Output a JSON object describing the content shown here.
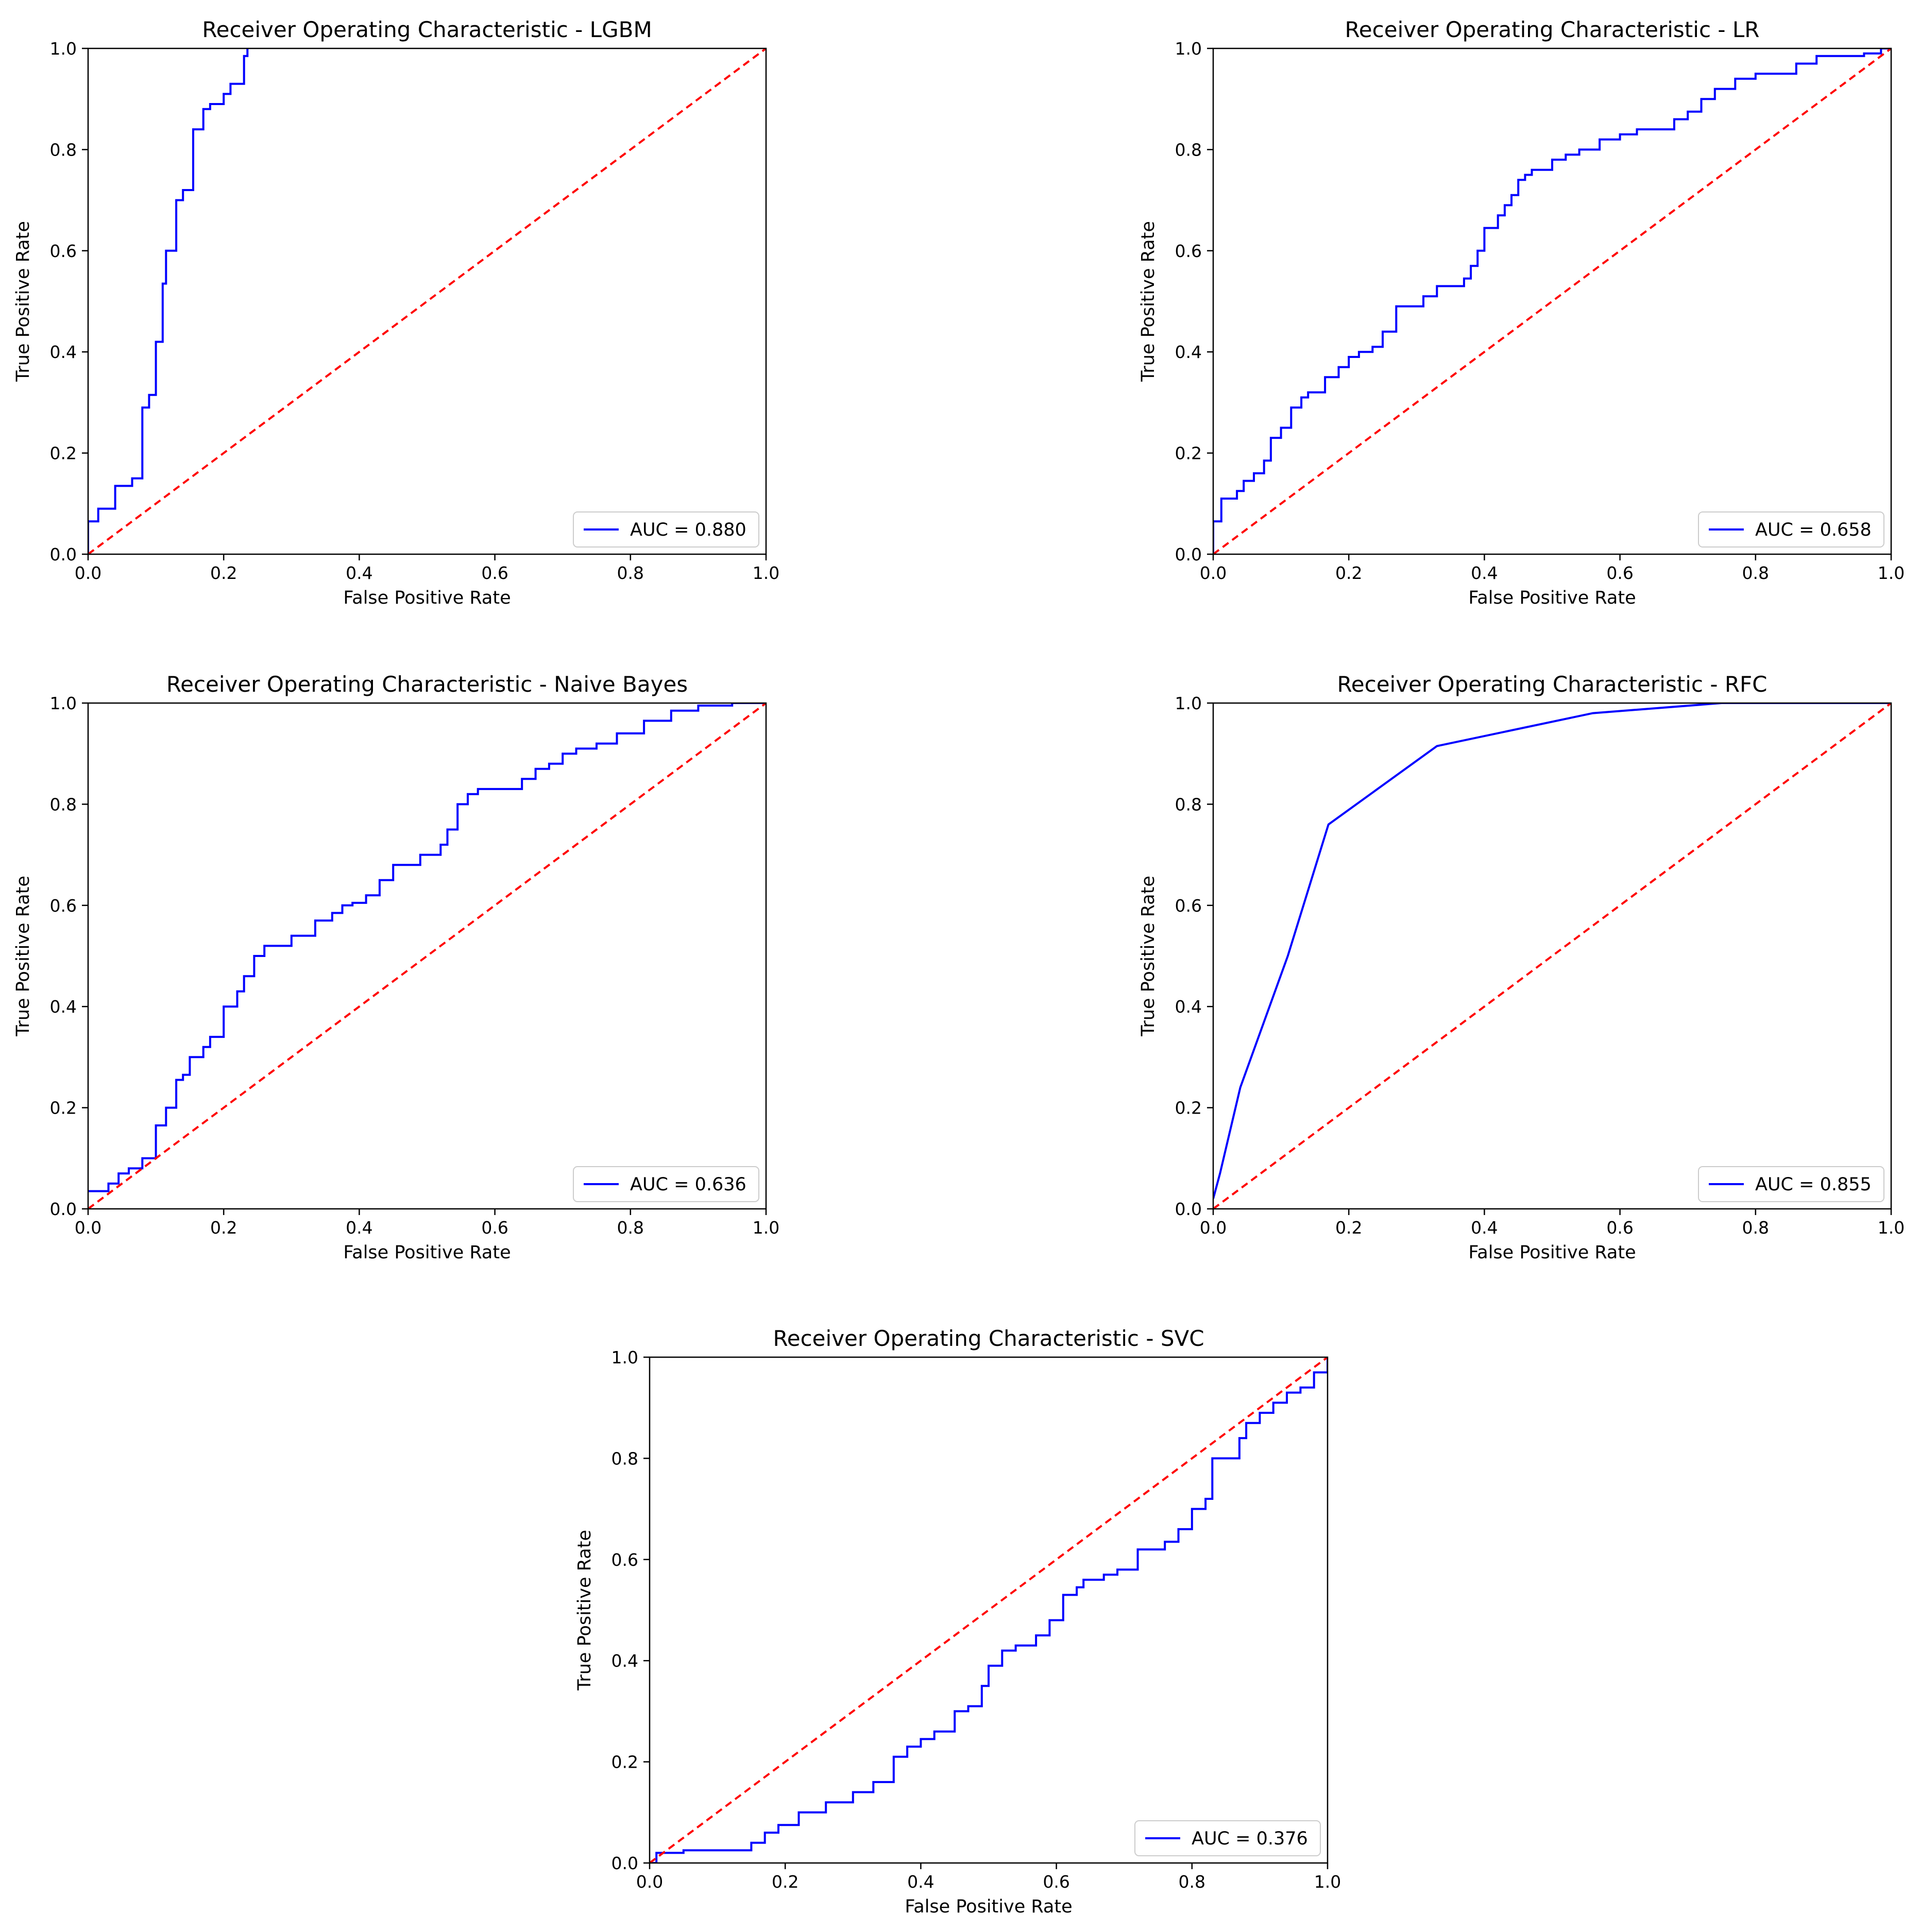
{
  "colors": {
    "roc": "#0000ff",
    "chance": "#ff0000",
    "axes": "#000000"
  },
  "chart_data": [
    {
      "type": "line",
      "title": "Receiver Operating Characteristic - LGBM",
      "xlabel": "False Positive Rate",
      "ylabel": "True Positive Rate",
      "xlim": [
        0,
        1
      ],
      "ylim": [
        0,
        1
      ],
      "xticks": [
        "0.0",
        "0.2",
        "0.4",
        "0.6",
        "0.8",
        "1.0"
      ],
      "yticks": [
        "0.0",
        "0.2",
        "0.4",
        "0.6",
        "0.8",
        "1.0"
      ],
      "legend": "lower-right",
      "series": [
        {
          "name": "AUC = 0.880",
          "style": "solid",
          "color": "#0000ff",
          "x": [
            0,
            0,
            0.015,
            0.015,
            0.04,
            0.04,
            0.065,
            0.065,
            0.08,
            0.08,
            0.09,
            0.09,
            0.1,
            0.1,
            0.11,
            0.11,
            0.115,
            0.115,
            0.13,
            0.13,
            0.14,
            0.14,
            0.155,
            0.155,
            0.17,
            0.17,
            0.18,
            0.18,
            0.2,
            0.2,
            0.21,
            0.21,
            0.23,
            0.23,
            0.235,
            0.235
          ],
          "y": [
            0,
            0.065,
            0.065,
            0.09,
            0.09,
            0.135,
            0.135,
            0.15,
            0.15,
            0.29,
            0.29,
            0.315,
            0.315,
            0.42,
            0.42,
            0.535,
            0.535,
            0.6,
            0.6,
            0.7,
            0.7,
            0.72,
            0.72,
            0.84,
            0.84,
            0.88,
            0.88,
            0.89,
            0.89,
            0.91,
            0.91,
            0.93,
            0.93,
            0.985,
            0.985,
            1.0
          ]
        },
        {
          "name": "chance",
          "style": "dashed",
          "color": "#ff0000",
          "x": [
            0,
            1
          ],
          "y": [
            0,
            1
          ]
        }
      ]
    },
    {
      "type": "line",
      "title": "Receiver Operating Characteristic - LR",
      "xlabel": "False Positive Rate",
      "ylabel": "True Positive Rate",
      "xlim": [
        0,
        1
      ],
      "ylim": [
        0,
        1
      ],
      "xticks": [
        "0.0",
        "0.2",
        "0.4",
        "0.6",
        "0.8",
        "1.0"
      ],
      "yticks": [
        "0.0",
        "0.2",
        "0.4",
        "0.6",
        "0.8",
        "1.0"
      ],
      "legend": "lower-right",
      "series": [
        {
          "name": "AUC = 0.658",
          "style": "solid",
          "color": "#0000ff",
          "x": [
            0,
            0,
            0.012,
            0.012,
            0.035,
            0.035,
            0.045,
            0.045,
            0.06,
            0.06,
            0.075,
            0.075,
            0.085,
            0.085,
            0.1,
            0.1,
            0.115,
            0.115,
            0.13,
            0.13,
            0.14,
            0.14,
            0.165,
            0.165,
            0.185,
            0.185,
            0.2,
            0.2,
            0.215,
            0.215,
            0.235,
            0.235,
            0.25,
            0.25,
            0.27,
            0.27,
            0.31,
            0.31,
            0.33,
            0.33,
            0.37,
            0.37,
            0.38,
            0.38,
            0.39,
            0.39,
            0.4,
            0.4,
            0.42,
            0.42,
            0.43,
            0.43,
            0.44,
            0.44,
            0.45,
            0.45,
            0.46,
            0.46,
            0.47,
            0.47,
            0.5,
            0.5,
            0.52,
            0.52,
            0.54,
            0.54,
            0.57,
            0.57,
            0.6,
            0.6,
            0.625,
            0.625,
            0.68,
            0.68,
            0.7,
            0.7,
            0.72,
            0.72,
            0.74,
            0.74,
            0.77,
            0.77,
            0.8,
            0.8,
            0.86,
            0.86,
            0.89,
            0.89,
            0.96,
            0.96,
            0.985,
            0.985,
            1.0
          ],
          "y": [
            0,
            0.065,
            0.065,
            0.11,
            0.11,
            0.125,
            0.125,
            0.145,
            0.145,
            0.16,
            0.16,
            0.185,
            0.185,
            0.23,
            0.23,
            0.25,
            0.25,
            0.29,
            0.29,
            0.31,
            0.31,
            0.32,
            0.32,
            0.35,
            0.35,
            0.37,
            0.37,
            0.39,
            0.39,
            0.4,
            0.4,
            0.41,
            0.41,
            0.44,
            0.44,
            0.49,
            0.49,
            0.51,
            0.51,
            0.53,
            0.53,
            0.545,
            0.545,
            0.57,
            0.57,
            0.6,
            0.6,
            0.645,
            0.645,
            0.67,
            0.67,
            0.69,
            0.69,
            0.71,
            0.71,
            0.74,
            0.74,
            0.75,
            0.75,
            0.76,
            0.76,
            0.78,
            0.78,
            0.79,
            0.79,
            0.8,
            0.8,
            0.82,
            0.82,
            0.83,
            0.83,
            0.84,
            0.84,
            0.86,
            0.86,
            0.875,
            0.875,
            0.9,
            0.9,
            0.92,
            0.92,
            0.94,
            0.94,
            0.95,
            0.95,
            0.97,
            0.97,
            0.985,
            0.985,
            0.99,
            0.99,
            1.0,
            1.0
          ]
        },
        {
          "name": "chance",
          "style": "dashed",
          "color": "#ff0000",
          "x": [
            0,
            1
          ],
          "y": [
            0,
            1
          ]
        }
      ]
    },
    {
      "type": "line",
      "title": "Receiver Operating Characteristic - Naive Bayes",
      "xlabel": "False Positive Rate",
      "ylabel": "True Positive Rate",
      "xlim": [
        0,
        1
      ],
      "ylim": [
        0,
        1
      ],
      "xticks": [
        "0.0",
        "0.2",
        "0.4",
        "0.6",
        "0.8",
        "1.0"
      ],
      "yticks": [
        "0.0",
        "0.2",
        "0.4",
        "0.6",
        "0.8",
        "1.0"
      ],
      "legend": "lower-right",
      "series": [
        {
          "name": "AUC = 0.636",
          "style": "solid",
          "color": "#0000ff",
          "x": [
            0,
            0.03,
            0.03,
            0.045,
            0.045,
            0.06,
            0.06,
            0.08,
            0.08,
            0.1,
            0.1,
            0.115,
            0.115,
            0.13,
            0.13,
            0.14,
            0.14,
            0.15,
            0.15,
            0.17,
            0.17,
            0.18,
            0.18,
            0.2,
            0.2,
            0.22,
            0.22,
            0.23,
            0.23,
            0.245,
            0.245,
            0.26,
            0.26,
            0.3,
            0.3,
            0.335,
            0.335,
            0.36,
            0.36,
            0.375,
            0.375,
            0.39,
            0.39,
            0.41,
            0.41,
            0.43,
            0.43,
            0.45,
            0.45,
            0.49,
            0.49,
            0.52,
            0.52,
            0.53,
            0.53,
            0.545,
            0.545,
            0.56,
            0.56,
            0.575,
            0.575,
            0.64,
            0.64,
            0.66,
            0.66,
            0.68,
            0.68,
            0.7,
            0.7,
            0.72,
            0.72,
            0.75,
            0.75,
            0.78,
            0.78,
            0.82,
            0.82,
            0.86,
            0.86,
            0.9,
            0.9,
            0.95,
            0.95,
            1.0
          ],
          "y": [
            0.035,
            0.035,
            0.05,
            0.05,
            0.07,
            0.07,
            0.08,
            0.08,
            0.1,
            0.1,
            0.165,
            0.165,
            0.2,
            0.2,
            0.255,
            0.255,
            0.265,
            0.265,
            0.3,
            0.3,
            0.32,
            0.32,
            0.34,
            0.34,
            0.4,
            0.4,
            0.43,
            0.43,
            0.46,
            0.46,
            0.5,
            0.5,
            0.52,
            0.52,
            0.54,
            0.54,
            0.57,
            0.57,
            0.585,
            0.585,
            0.6,
            0.6,
            0.605,
            0.605,
            0.62,
            0.62,
            0.65,
            0.65,
            0.68,
            0.68,
            0.7,
            0.7,
            0.72,
            0.72,
            0.75,
            0.75,
            0.8,
            0.8,
            0.82,
            0.82,
            0.83,
            0.83,
            0.85,
            0.85,
            0.87,
            0.87,
            0.88,
            0.88,
            0.9,
            0.9,
            0.91,
            0.91,
            0.92,
            0.92,
            0.94,
            0.94,
            0.965,
            0.965,
            0.985,
            0.985,
            0.995,
            0.995,
            1.0,
            1.0
          ]
        },
        {
          "name": "chance",
          "style": "dashed",
          "color": "#ff0000",
          "x": [
            0,
            1
          ],
          "y": [
            0,
            1
          ]
        }
      ]
    },
    {
      "type": "line",
      "title": "Receiver Operating Characteristic - RFC",
      "xlabel": "False Positive Rate",
      "ylabel": "True Positive Rate",
      "xlim": [
        0,
        1
      ],
      "ylim": [
        0,
        1
      ],
      "xticks": [
        "0.0",
        "0.2",
        "0.4",
        "0.6",
        "0.8",
        "1.0"
      ],
      "yticks": [
        "0.0",
        "0.2",
        "0.4",
        "0.6",
        "0.8",
        "1.0"
      ],
      "legend": "lower-right",
      "series": [
        {
          "name": "AUC = 0.855",
          "style": "solid",
          "color": "#0000ff",
          "x": [
            0,
            0.01,
            0.04,
            0.11,
            0.17,
            0.33,
            0.56,
            0.75,
            1.0
          ],
          "y": [
            0.02,
            0.07,
            0.24,
            0.5,
            0.76,
            0.915,
            0.98,
            1.0,
            1.0
          ]
        },
        {
          "name": "chance",
          "style": "dashed",
          "color": "#ff0000",
          "x": [
            0,
            1
          ],
          "y": [
            0,
            1
          ]
        }
      ]
    },
    {
      "type": "line",
      "title": "Receiver Operating Characteristic - SVC",
      "xlabel": "False Positive Rate",
      "ylabel": "True Positive Rate",
      "xlim": [
        0,
        1
      ],
      "ylim": [
        0,
        1
      ],
      "xticks": [
        "0.0",
        "0.2",
        "0.4",
        "0.6",
        "0.8",
        "1.0"
      ],
      "yticks": [
        "0.0",
        "0.2",
        "0.4",
        "0.6",
        "0.8",
        "1.0"
      ],
      "legend": "lower-right",
      "series": [
        {
          "name": "AUC = 0.376",
          "style": "solid",
          "color": "#0000ff",
          "x": [
            0,
            0.01,
            0.01,
            0.05,
            0.05,
            0.15,
            0.15,
            0.17,
            0.17,
            0.19,
            0.19,
            0.22,
            0.22,
            0.26,
            0.26,
            0.3,
            0.3,
            0.33,
            0.33,
            0.36,
            0.36,
            0.38,
            0.38,
            0.4,
            0.4,
            0.42,
            0.42,
            0.45,
            0.45,
            0.47,
            0.47,
            0.49,
            0.49,
            0.5,
            0.5,
            0.52,
            0.52,
            0.54,
            0.54,
            0.57,
            0.57,
            0.59,
            0.59,
            0.61,
            0.61,
            0.63,
            0.63,
            0.64,
            0.64,
            0.67,
            0.67,
            0.69,
            0.69,
            0.72,
            0.72,
            0.76,
            0.76,
            0.78,
            0.78,
            0.8,
            0.8,
            0.82,
            0.82,
            0.83,
            0.83,
            0.87,
            0.87,
            0.88,
            0.88,
            0.9,
            0.9,
            0.92,
            0.92,
            0.94,
            0.94,
            0.96,
            0.96,
            0.98,
            0.98,
            1.0,
            1.0
          ],
          "y": [
            0.0,
            0.0,
            0.02,
            0.02,
            0.025,
            0.025,
            0.04,
            0.04,
            0.06,
            0.06,
            0.075,
            0.075,
            0.1,
            0.1,
            0.12,
            0.12,
            0.14,
            0.14,
            0.16,
            0.16,
            0.21,
            0.21,
            0.23,
            0.23,
            0.245,
            0.245,
            0.26,
            0.26,
            0.3,
            0.3,
            0.31,
            0.31,
            0.35,
            0.35,
            0.39,
            0.39,
            0.42,
            0.42,
            0.43,
            0.43,
            0.45,
            0.45,
            0.48,
            0.48,
            0.53,
            0.53,
            0.545,
            0.545,
            0.56,
            0.56,
            0.57,
            0.57,
            0.58,
            0.58,
            0.62,
            0.62,
            0.635,
            0.635,
            0.66,
            0.66,
            0.7,
            0.7,
            0.72,
            0.72,
            0.8,
            0.8,
            0.84,
            0.84,
            0.87,
            0.87,
            0.89,
            0.89,
            0.91,
            0.91,
            0.93,
            0.93,
            0.94,
            0.94,
            0.97,
            0.97,
            1.0
          ]
        },
        {
          "name": "chance",
          "style": "dashed",
          "color": "#ff0000",
          "x": [
            0,
            1
          ],
          "y": [
            0,
            1
          ]
        }
      ]
    }
  ]
}
